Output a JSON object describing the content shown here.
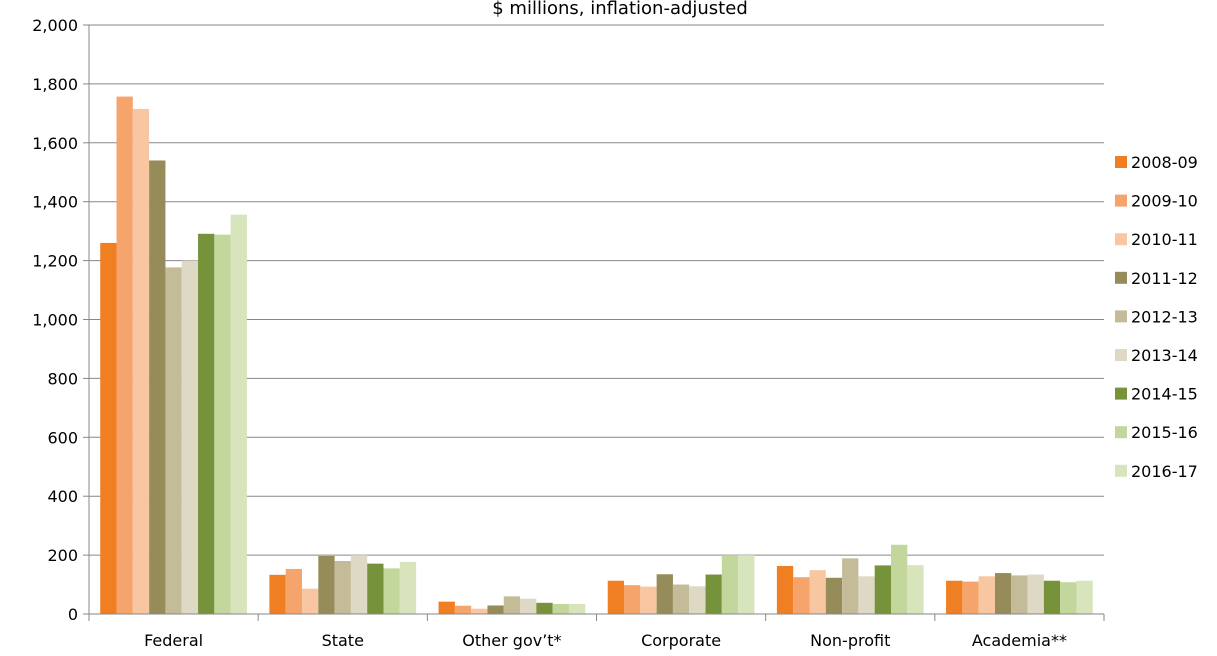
{
  "chart_data": {
    "type": "bar",
    "title": "$ millions, inflation-adjusted",
    "categories": [
      "Federal",
      "State",
      "Other gov’t*",
      "Corporate",
      "Non-profit",
      "Academia**"
    ],
    "ylim": [
      0,
      2000
    ],
    "yticks": [
      0,
      200,
      400,
      600,
      800,
      1000,
      1200,
      1400,
      1600,
      1800,
      2000
    ],
    "ytick_labels": [
      "0",
      "200",
      "400",
      "600",
      "800",
      "1,000",
      "1,200",
      "1,400",
      "1,600",
      "1,800",
      "2,000"
    ],
    "grid": true,
    "legend_position": "right",
    "series": [
      {
        "name": "2008-09",
        "color": "#F07E22",
        "values": [
          1260,
          133,
          42,
          113,
          163,
          113
        ]
      },
      {
        "name": "2009-10",
        "color": "#F5A46B",
        "values": [
          1757,
          153,
          28,
          98,
          125,
          110
        ]
      },
      {
        "name": "2010-11",
        "color": "#F8C7A2",
        "values": [
          1715,
          86,
          18,
          93,
          149,
          128
        ]
      },
      {
        "name": "2011-12",
        "color": "#968C5A",
        "values": [
          1540,
          197,
          29,
          135,
          123,
          139
        ]
      },
      {
        "name": "2012-13",
        "color": "#C4BC98",
        "values": [
          1177,
          180,
          60,
          100,
          189,
          131
        ]
      },
      {
        "name": "2013-14",
        "color": "#DDD9C5",
        "values": [
          1200,
          200,
          52,
          94,
          128,
          134
        ]
      },
      {
        "name": "2014-15",
        "color": "#76933C",
        "values": [
          1291,
          171,
          38,
          134,
          165,
          113
        ]
      },
      {
        "name": "2015-16",
        "color": "#C3D69B",
        "values": [
          1288,
          155,
          34,
          200,
          235,
          108
        ]
      },
      {
        "name": "2016-17",
        "color": "#D8E4BC",
        "values": [
          1356,
          177,
          34,
          200,
          166,
          113
        ]
      }
    ]
  }
}
